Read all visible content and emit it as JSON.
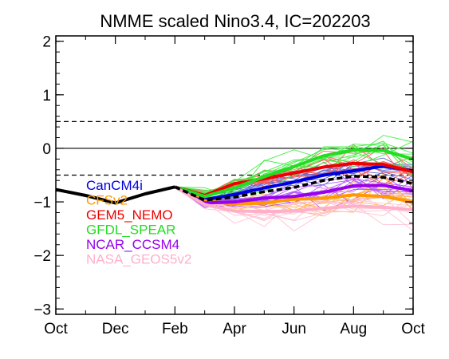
{
  "chart_data": {
    "type": "line",
    "title": "NMME scaled Nino3.4, IC=202203",
    "xlabel": "",
    "ylabel": "",
    "x_ticks": [
      "Oct",
      "Dec",
      "Feb",
      "Apr",
      "Jun",
      "Aug",
      "Oct"
    ],
    "y_ticks": [
      "2",
      "1",
      "0",
      "−1",
      "−2",
      "−3"
    ],
    "xlim": [
      0,
      12
    ],
    "ylim": [
      -3.1,
      2.1
    ],
    "reference_lines": [
      {
        "y": 0.5,
        "style": "dashed"
      },
      {
        "y": 0.0,
        "style": "solid"
      },
      {
        "y": -0.5,
        "style": "dashed"
      }
    ],
    "observed": {
      "color": "#000000",
      "x": [
        0,
        1,
        2,
        3,
        4
      ],
      "values": [
        -0.77,
        -0.88,
        -1.02,
        -0.85,
        -0.72
      ]
    },
    "forecast_start_x": 4,
    "forecast_x": [
      4,
      5,
      6,
      7,
      8,
      9,
      10,
      11,
      12
    ],
    "legend_position": "left",
    "models": [
      {
        "name": "CanCM4i",
        "color": "#0000dd",
        "light_color": "#5a6ad8",
        "mean": [
          -0.72,
          -0.96,
          -0.86,
          -0.74,
          -0.63,
          -0.5,
          -0.42,
          -0.33,
          -0.42
        ],
        "spread": [
          0.0,
          0.1,
          0.14,
          0.18,
          0.2,
          0.22,
          0.22,
          0.22,
          0.22
        ]
      },
      {
        "name": "CFSv2",
        "color": "#ff9900",
        "light_color": "#ffb24d",
        "mean": [
          -0.72,
          -0.98,
          -1.04,
          -1.02,
          -0.95,
          -0.93,
          -0.87,
          -0.9,
          -1.0
        ],
        "spread": [
          0.0,
          0.08,
          0.12,
          0.16,
          0.2,
          0.25,
          0.28,
          0.32,
          0.36
        ]
      },
      {
        "name": "GEM5_NEMO",
        "color": "#ee0000",
        "light_color": "#ff5a5a",
        "mean": [
          -0.72,
          -0.88,
          -0.66,
          -0.57,
          -0.46,
          -0.35,
          -0.28,
          -0.3,
          -0.44
        ],
        "spread": [
          0.0,
          0.08,
          0.12,
          0.14,
          0.18,
          0.22,
          0.24,
          0.26,
          0.26
        ]
      },
      {
        "name": "GFDL_SPEAR",
        "color": "#22dd22",
        "light_color": "#44ee44",
        "mean": [
          -0.72,
          -0.9,
          -0.74,
          -0.53,
          -0.34,
          -0.14,
          -0.03,
          -0.04,
          -0.2
        ],
        "spread": [
          0.0,
          0.12,
          0.18,
          0.24,
          0.28,
          0.32,
          0.34,
          0.34,
          0.34
        ]
      },
      {
        "name": "NCAR_CCSM4",
        "color": "#9900ee",
        "light_color": "#b45aff",
        "mean": [
          -0.72,
          -1.02,
          -1.0,
          -0.93,
          -0.9,
          -0.82,
          -0.7,
          -0.69,
          -0.79
        ],
        "spread": [
          0.0,
          0.1,
          0.14,
          0.16,
          0.2,
          0.22,
          0.24,
          0.26,
          0.28
        ]
      },
      {
        "name": "NASA_GEOS5v2",
        "color": "#ffb0c8",
        "light_color": "#ffc2d4",
        "mean": [
          -0.72,
          -1.05,
          -1.17,
          -1.18,
          -1.17,
          -1.12,
          -1.08,
          -1.1,
          -1.15
        ],
        "spread": [
          0.0,
          0.12,
          0.18,
          0.22,
          0.24,
          0.26,
          0.28,
          0.3,
          0.32
        ]
      }
    ],
    "ensemble_mean": {
      "color": "#000000",
      "style": "dashed",
      "values": [
        -0.72,
        -0.97,
        -0.91,
        -0.81,
        -0.73,
        -0.6,
        -0.52,
        -0.54,
        -0.66
      ]
    }
  }
}
